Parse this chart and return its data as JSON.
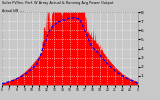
{
  "title": "Solar PV/Inv. Perf. W Array Actual & Running Avg Power Output",
  "subtitle": "Actual kW  ---",
  "bg_color": "#c8c8c8",
  "plot_bg_color": "#c8c8c8",
  "fill_color": "#ff0000",
  "line_color": "#0000ff",
  "grid_color": "#ffffff",
  "ylim": [
    0,
    8
  ],
  "yticks": [
    1,
    2,
    3,
    4,
    5,
    6,
    7,
    8
  ],
  "ytick_labels": [
    "1",
    "2",
    "3",
    "4",
    "5",
    "6",
    "7",
    "8"
  ],
  "num_points": 300,
  "seed": 12
}
